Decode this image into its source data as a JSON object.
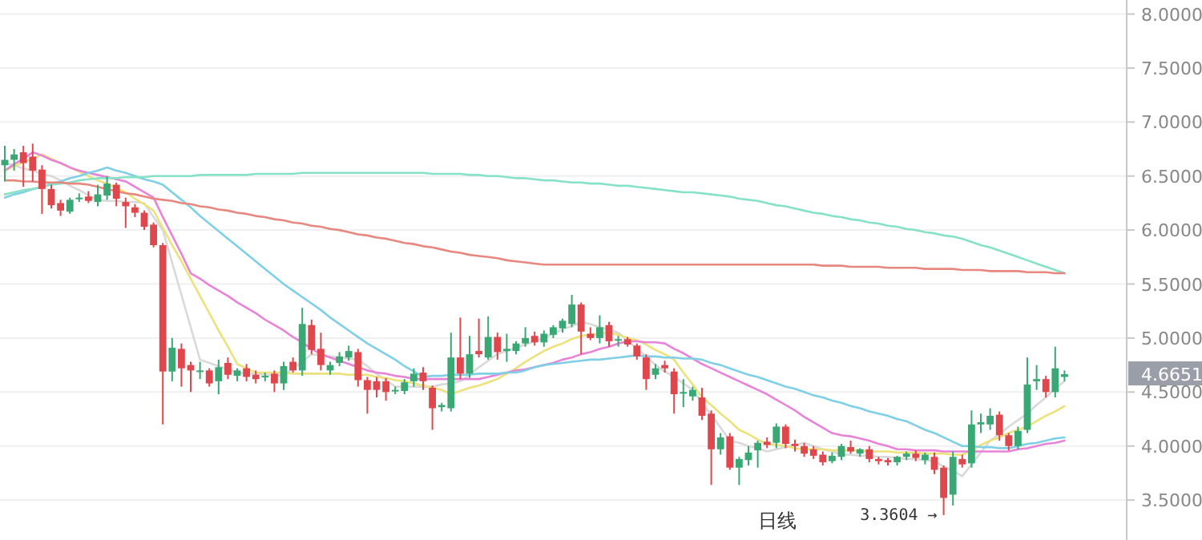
{
  "chart_data": {
    "type": "candlestick",
    "categories": [
      null,
      null,
      null,
      null,
      null,
      null,
      null,
      null,
      null,
      null,
      null,
      null,
      null,
      null,
      null,
      null,
      null,
      null,
      null,
      null,
      null,
      null,
      null,
      null,
      null,
      null,
      null,
      null,
      null,
      null,
      null,
      null,
      null,
      null,
      null,
      null,
      null,
      null,
      null,
      null,
      null,
      null,
      null,
      null,
      null,
      null,
      null,
      null,
      null,
      null,
      null,
      null,
      null,
      null,
      null,
      null,
      null,
      null,
      null,
      null,
      null,
      null,
      null,
      null,
      null,
      null,
      null,
      null,
      null,
      null,
      null,
      null,
      null,
      null,
      null,
      null,
      null,
      null,
      null,
      null,
      null,
      null,
      null,
      null,
      null,
      null,
      null,
      null,
      null,
      null,
      null,
      null,
      null,
      null,
      null,
      null,
      null,
      null,
      null,
      null,
      null,
      null,
      null,
      null,
      null,
      null,
      null,
      null,
      null,
      null,
      null,
      null,
      null,
      null,
      null
    ],
    "ohlc": [
      [
        6.6,
        6.78,
        6.45,
        6.65
      ],
      [
        6.65,
        6.75,
        6.55,
        6.7
      ],
      [
        6.72,
        6.78,
        6.4,
        6.62
      ],
      [
        6.68,
        6.8,
        6.45,
        6.55
      ],
      [
        6.56,
        6.6,
        6.15,
        6.38
      ],
      [
        6.38,
        6.42,
        6.2,
        6.23
      ],
      [
        6.25,
        6.28,
        6.13,
        6.18
      ],
      [
        6.17,
        6.3,
        6.15,
        6.28
      ],
      [
        6.29,
        6.34,
        6.26,
        6.3
      ],
      [
        6.31,
        6.36,
        6.25,
        6.27
      ],
      [
        6.26,
        6.42,
        6.22,
        6.33
      ],
      [
        6.32,
        6.5,
        6.28,
        6.43
      ],
      [
        6.42,
        6.44,
        6.22,
        6.29
      ],
      [
        6.26,
        6.3,
        6.02,
        6.22
      ],
      [
        6.21,
        6.24,
        6.12,
        6.16
      ],
      [
        6.16,
        6.18,
        6.0,
        6.03
      ],
      [
        6.05,
        6.07,
        5.84,
        5.86
      ],
      [
        5.86,
        5.88,
        4.2,
        4.69
      ],
      [
        4.69,
        5.0,
        4.6,
        4.91
      ],
      [
        4.9,
        4.95,
        4.55,
        4.72
      ],
      [
        4.75,
        4.78,
        4.5,
        4.7
      ],
      [
        4.7,
        4.78,
        4.62,
        4.7
      ],
      [
        4.7,
        4.72,
        4.55,
        4.58
      ],
      [
        4.6,
        4.8,
        4.48,
        4.73
      ],
      [
        4.77,
        4.82,
        4.62,
        4.66
      ],
      [
        4.65,
        4.72,
        4.6,
        4.7
      ],
      [
        4.72,
        4.76,
        4.6,
        4.64
      ],
      [
        4.66,
        4.7,
        4.58,
        4.62
      ],
      [
        4.64,
        4.68,
        4.6,
        4.65
      ],
      [
        4.67,
        4.7,
        4.5,
        4.58
      ],
      [
        4.58,
        4.78,
        4.52,
        4.74
      ],
      [
        4.78,
        4.82,
        4.68,
        4.7
      ],
      [
        4.7,
        5.28,
        4.65,
        5.13
      ],
      [
        5.12,
        5.17,
        4.85,
        4.89
      ],
      [
        4.9,
        5.05,
        4.7,
        4.75
      ],
      [
        4.7,
        4.78,
        4.66,
        4.75
      ],
      [
        4.77,
        4.87,
        4.74,
        4.83
      ],
      [
        4.82,
        4.93,
        4.79,
        4.88
      ],
      [
        4.87,
        4.9,
        4.55,
        4.61
      ],
      [
        4.61,
        4.64,
        4.3,
        4.52
      ],
      [
        4.6,
        4.64,
        4.45,
        4.52
      ],
      [
        4.6,
        4.63,
        4.42,
        4.5
      ],
      [
        4.52,
        4.55,
        4.48,
        4.52
      ],
      [
        4.51,
        4.62,
        4.48,
        4.59
      ],
      [
        4.6,
        4.72,
        4.55,
        4.67
      ],
      [
        4.68,
        4.73,
        4.52,
        4.6
      ],
      [
        4.54,
        4.56,
        4.15,
        4.35
      ],
      [
        4.36,
        4.4,
        4.32,
        4.38
      ],
      [
        4.35,
        5.05,
        4.32,
        4.82
      ],
      [
        4.82,
        5.19,
        4.62,
        4.67
      ],
      [
        4.67,
        5.02,
        4.63,
        4.85
      ],
      [
        4.88,
        5.18,
        4.82,
        4.85
      ],
      [
        4.82,
        5.2,
        4.8,
        5.01
      ],
      [
        5.01,
        5.05,
        4.8,
        4.87
      ],
      [
        4.88,
        5.04,
        4.78,
        4.9
      ],
      [
        4.88,
        4.97,
        4.85,
        4.95
      ],
      [
        4.95,
        5.1,
        4.92,
        5.0
      ],
      [
        5.02,
        5.06,
        4.93,
        4.96
      ],
      [
        4.96,
        5.07,
        4.92,
        5.04
      ],
      [
        5.03,
        5.12,
        5.0,
        5.1
      ],
      [
        5.09,
        5.18,
        5.05,
        5.16
      ],
      [
        5.13,
        5.4,
        5.1,
        5.31
      ],
      [
        5.31,
        5.33,
        4.85,
        5.06
      ],
      [
        5.04,
        5.1,
        4.98,
        5.0
      ],
      [
        5.0,
        5.21,
        4.95,
        5.1
      ],
      [
        5.12,
        5.15,
        4.92,
        4.97
      ],
      [
        4.98,
        5.02,
        4.92,
        4.99
      ],
      [
        4.99,
        5.01,
        4.92,
        4.94
      ],
      [
        4.93,
        4.95,
        4.8,
        4.83
      ],
      [
        4.82,
        4.85,
        4.52,
        4.62
      ],
      [
        4.66,
        4.76,
        4.62,
        4.72
      ],
      [
        4.75,
        4.79,
        4.68,
        4.72
      ],
      [
        4.69,
        4.72,
        4.3,
        4.48
      ],
      [
        4.5,
        4.62,
        4.36,
        4.5
      ],
      [
        4.46,
        4.55,
        4.42,
        4.52
      ],
      [
        4.45,
        4.54,
        4.24,
        4.28
      ],
      [
        4.3,
        4.33,
        3.64,
        3.97
      ],
      [
        3.97,
        4.12,
        3.92,
        4.08
      ],
      [
        4.09,
        4.12,
        3.78,
        3.8
      ],
      [
        3.8,
        3.9,
        3.64,
        3.88
      ],
      [
        3.87,
        4.0,
        3.82,
        3.94
      ],
      [
        3.96,
        4.05,
        3.8,
        4.03
      ],
      [
        4.04,
        4.08,
        3.98,
        4.01
      ],
      [
        4.03,
        4.21,
        3.98,
        4.18
      ],
      [
        4.18,
        4.2,
        3.98,
        4.02
      ],
      [
        4.02,
        4.06,
        3.95,
        4.0
      ],
      [
        4.0,
        4.03,
        3.9,
        3.93
      ],
      [
        3.97,
        4.0,
        3.88,
        3.91
      ],
      [
        3.92,
        3.95,
        3.82,
        3.85
      ],
      [
        3.86,
        3.94,
        3.84,
        3.91
      ],
      [
        3.9,
        4.02,
        3.87,
        4.0
      ],
      [
        3.99,
        4.05,
        3.93,
        3.95
      ],
      [
        3.93,
        3.98,
        3.9,
        3.97
      ],
      [
        3.97,
        4.0,
        3.85,
        3.88
      ],
      [
        3.88,
        3.9,
        3.83,
        3.86
      ],
      [
        3.87,
        3.89,
        3.82,
        3.85
      ],
      [
        3.85,
        3.91,
        3.82,
        3.9
      ],
      [
        3.9,
        3.95,
        3.87,
        3.93
      ],
      [
        3.93,
        3.96,
        3.86,
        3.89
      ],
      [
        3.87,
        3.94,
        3.83,
        3.92
      ],
      [
        3.9,
        3.94,
        3.74,
        3.78
      ],
      [
        3.8,
        3.82,
        3.3604,
        3.52
      ],
      [
        3.55,
        3.95,
        3.45,
        3.9
      ],
      [
        3.88,
        3.92,
        3.8,
        3.83
      ],
      [
        3.84,
        4.33,
        3.8,
        4.2
      ],
      [
        4.2,
        4.3,
        4.12,
        4.22
      ],
      [
        4.2,
        4.35,
        4.15,
        4.28
      ],
      [
        4.29,
        4.32,
        4.05,
        4.1
      ],
      [
        4.1,
        4.12,
        3.96,
        4.0
      ],
      [
        4.0,
        4.18,
        3.97,
        4.14
      ],
      [
        4.15,
        4.82,
        4.12,
        4.57
      ],
      [
        4.6,
        4.75,
        4.52,
        4.62
      ],
      [
        4.62,
        4.65,
        4.45,
        4.5
      ],
      [
        4.5,
        4.92,
        4.45,
        4.72
      ],
      [
        4.64,
        4.7,
        4.6,
        4.6651
      ]
    ],
    "series": [
      {
        "type": "line",
        "color": "#d9d9d9",
        "values": [
          6.62,
          6.6,
          6.57,
          6.55,
          6.52,
          6.5,
          6.46,
          6.41,
          6.37,
          6.32,
          6.28,
          6.27,
          6.27,
          6.26,
          6.26,
          6.25,
          6.12,
          6.0,
          5.7,
          5.4,
          5.1,
          4.8,
          4.77,
          4.74,
          4.71,
          4.68,
          4.67,
          4.67,
          4.66,
          4.66,
          4.65,
          4.72,
          4.78,
          4.85,
          4.84,
          4.83,
          4.82,
          4.81,
          4.8,
          4.74,
          4.67,
          4.61,
          4.55,
          4.55,
          4.55,
          4.55,
          4.55,
          4.57,
          4.58,
          4.6,
          4.66,
          4.73,
          4.79,
          4.85,
          4.88,
          4.91,
          4.94,
          4.97,
          5.0,
          5.04,
          5.08,
          5.11,
          5.15,
          5.13,
          5.1,
          5.08,
          5.05,
          4.98,
          4.9,
          4.83,
          4.75,
          4.69,
          4.64,
          4.58,
          4.52,
          4.4,
          4.29,
          4.17,
          4.05,
          4.03,
          4.0,
          3.98,
          3.95,
          3.97,
          3.99,
          4.01,
          4.03,
          4.0,
          3.97,
          3.95,
          3.92,
          3.92,
          3.91,
          3.91,
          3.9,
          3.9,
          3.89,
          3.88,
          3.88,
          3.87,
          3.86,
          3.81,
          3.77,
          3.72,
          3.83,
          3.94,
          4.05,
          4.11,
          4.18,
          4.24,
          4.3,
          4.38,
          4.45,
          4.53,
          4.6
        ]
      },
      {
        "type": "line",
        "color": "#ebe27c",
        "values": [
          6.55,
          6.59,
          6.63,
          6.66,
          6.7,
          6.66,
          6.62,
          6.58,
          6.54,
          6.5,
          6.46,
          6.43,
          6.39,
          6.35,
          6.29,
          6.24,
          6.18,
          6.02,
          5.86,
          5.71,
          5.55,
          5.39,
          5.23,
          5.07,
          4.92,
          4.76,
          4.72,
          4.68,
          4.68,
          4.68,
          4.68,
          4.67,
          4.67,
          4.67,
          4.67,
          4.67,
          4.67,
          4.66,
          4.66,
          4.66,
          4.64,
          4.63,
          4.61,
          4.6,
          4.58,
          4.56,
          4.54,
          4.52,
          4.48,
          4.51,
          4.54,
          4.56,
          4.59,
          4.62,
          4.67,
          4.72,
          4.78,
          4.83,
          4.88,
          4.92,
          4.95,
          4.99,
          5.02,
          5.03,
          5.04,
          5.05,
          5.03,
          5.0,
          4.98,
          4.94,
          4.89,
          4.85,
          4.8,
          4.68,
          4.57,
          4.45,
          4.38,
          4.3,
          4.23,
          4.15,
          4.11,
          4.06,
          4.02,
          4.01,
          4.0,
          3.98,
          3.97,
          3.97,
          3.97,
          3.96,
          3.96,
          3.96,
          3.96,
          3.95,
          3.95,
          3.95,
          3.94,
          3.94,
          3.94,
          3.93,
          3.93,
          3.93,
          3.92,
          3.92,
          3.96,
          4.01,
          4.05,
          4.08,
          4.12,
          4.15,
          4.18,
          4.23,
          4.28,
          4.32,
          4.37
        ]
      },
      {
        "type": "line",
        "color": "#e883d8",
        "values": [
          6.55,
          6.61,
          6.66,
          6.72,
          6.69,
          6.65,
          6.62,
          6.58,
          6.55,
          6.53,
          6.51,
          6.49,
          6.47,
          6.45,
          6.4,
          6.35,
          6.3,
          6.12,
          5.95,
          5.78,
          5.6,
          5.55,
          5.49,
          5.44,
          5.39,
          5.33,
          5.28,
          5.23,
          5.17,
          5.12,
          5.07,
          5.01,
          4.96,
          4.9,
          4.85,
          4.82,
          4.79,
          4.76,
          4.73,
          4.7,
          4.68,
          4.67,
          4.65,
          4.64,
          4.62,
          4.62,
          4.62,
          4.62,
          4.62,
          4.62,
          4.62,
          4.62,
          4.64,
          4.66,
          4.68,
          4.7,
          4.71,
          4.73,
          4.75,
          4.77,
          4.8,
          4.82,
          4.85,
          4.87,
          4.9,
          4.92,
          4.95,
          4.97,
          4.97,
          4.96,
          4.96,
          4.95,
          4.9,
          4.86,
          4.81,
          4.76,
          4.72,
          4.68,
          4.64,
          4.6,
          4.56,
          4.52,
          4.48,
          4.43,
          4.38,
          4.33,
          4.27,
          4.22,
          4.17,
          4.12,
          4.1,
          4.09,
          4.07,
          4.05,
          4.02,
          4.0,
          3.97,
          3.97,
          3.96,
          3.96,
          3.96,
          3.95,
          3.95,
          3.95,
          3.95,
          3.95,
          3.95,
          3.95,
          3.95,
          3.97,
          3.98,
          4.0,
          4.02,
          4.03,
          4.05
        ]
      },
      {
        "type": "line",
        "color": "#7fcfe6",
        "values": [
          6.3,
          6.33,
          6.35,
          6.38,
          6.4,
          6.43,
          6.45,
          6.48,
          6.5,
          6.53,
          6.55,
          6.58,
          6.55,
          6.53,
          6.5,
          6.47,
          6.45,
          6.42,
          6.35,
          6.28,
          6.21,
          6.13,
          6.06,
          5.99,
          5.92,
          5.85,
          5.78,
          5.71,
          5.64,
          5.57,
          5.5,
          5.44,
          5.38,
          5.32,
          5.26,
          5.19,
          5.13,
          5.07,
          5.01,
          4.95,
          4.9,
          4.85,
          4.8,
          4.74,
          4.69,
          4.64,
          4.65,
          4.65,
          4.66,
          4.66,
          4.66,
          4.67,
          4.67,
          4.67,
          4.68,
          4.68,
          4.7,
          4.73,
          4.75,
          4.76,
          4.77,
          4.78,
          4.79,
          4.8,
          4.8,
          4.81,
          4.82,
          4.83,
          4.84,
          4.83,
          4.83,
          4.82,
          4.82,
          4.81,
          4.81,
          4.8,
          4.77,
          4.75,
          4.72,
          4.69,
          4.66,
          4.64,
          4.61,
          4.58,
          4.55,
          4.53,
          4.5,
          4.47,
          4.45,
          4.42,
          4.4,
          4.37,
          4.35,
          4.32,
          4.3,
          4.28,
          4.25,
          4.23,
          4.19,
          4.15,
          4.12,
          4.08,
          4.04,
          4.0,
          4.0,
          3.99,
          3.99,
          3.98,
          3.98,
          4.0,
          4.02,
          4.03,
          4.05,
          4.07,
          4.08
        ]
      },
      {
        "type": "line",
        "color": "#86e2c6",
        "values": [
          6.33,
          6.35,
          6.37,
          6.38,
          6.4,
          6.42,
          6.43,
          6.44,
          6.46,
          6.47,
          6.48,
          6.48,
          6.48,
          6.49,
          6.49,
          6.49,
          6.5,
          6.5,
          6.5,
          6.5,
          6.5,
          6.51,
          6.51,
          6.51,
          6.51,
          6.51,
          6.51,
          6.52,
          6.52,
          6.52,
          6.52,
          6.52,
          6.53,
          6.53,
          6.53,
          6.53,
          6.53,
          6.53,
          6.53,
          6.53,
          6.53,
          6.53,
          6.53,
          6.53,
          6.53,
          6.53,
          6.52,
          6.52,
          6.52,
          6.52,
          6.51,
          6.51,
          6.5,
          6.5,
          6.49,
          6.48,
          6.48,
          6.47,
          6.46,
          6.46,
          6.45,
          6.44,
          6.44,
          6.43,
          6.43,
          6.42,
          6.41,
          6.41,
          6.4,
          6.39,
          6.38,
          6.37,
          6.36,
          6.35,
          6.35,
          6.34,
          6.33,
          6.32,
          6.31,
          6.29,
          6.28,
          6.27,
          6.25,
          6.23,
          6.22,
          6.2,
          6.18,
          6.16,
          6.15,
          6.13,
          6.12,
          6.1,
          6.09,
          6.07,
          6.06,
          6.04,
          6.03,
          6.01,
          6.0,
          5.98,
          5.97,
          5.95,
          5.94,
          5.92,
          5.89,
          5.86,
          5.84,
          5.81,
          5.78,
          5.75,
          5.72,
          5.69,
          5.66,
          5.63,
          5.6
        ]
      },
      {
        "type": "line",
        "color": "#e8877f",
        "values": [
          6.46,
          6.46,
          6.45,
          6.45,
          6.44,
          6.44,
          6.44,
          6.43,
          6.43,
          6.42,
          6.4,
          6.38,
          6.36,
          6.34,
          6.33,
          6.31,
          6.29,
          6.28,
          6.27,
          6.25,
          6.24,
          6.22,
          6.21,
          6.19,
          6.18,
          6.16,
          6.15,
          6.13,
          6.12,
          6.1,
          6.09,
          6.07,
          6.06,
          6.04,
          6.03,
          6.01,
          6.0,
          5.98,
          5.96,
          5.95,
          5.93,
          5.92,
          5.9,
          5.88,
          5.87,
          5.85,
          5.84,
          5.82,
          5.8,
          5.79,
          5.77,
          5.76,
          5.75,
          5.74,
          5.72,
          5.71,
          5.7,
          5.69,
          5.68,
          5.68,
          5.68,
          5.68,
          5.68,
          5.68,
          5.68,
          5.68,
          5.68,
          5.68,
          5.68,
          5.68,
          5.68,
          5.68,
          5.68,
          5.68,
          5.68,
          5.68,
          5.68,
          5.68,
          5.68,
          5.68,
          5.68,
          5.68,
          5.68,
          5.68,
          5.68,
          5.68,
          5.68,
          5.68,
          5.67,
          5.67,
          5.67,
          5.66,
          5.66,
          5.66,
          5.66,
          5.65,
          5.65,
          5.65,
          5.65,
          5.64,
          5.64,
          5.64,
          5.64,
          5.63,
          5.63,
          5.63,
          5.62,
          5.62,
          5.62,
          5.62,
          5.61,
          5.61,
          5.61,
          5.6,
          5.6
        ]
      }
    ],
    "ylim": [
      3.13,
      8.13
    ],
    "yticks": [
      {
        "value": 3.5,
        "label": "3.5000"
      },
      {
        "value": 4.0,
        "label": "4.0000"
      },
      {
        "value": 4.5,
        "label": "4.5000"
      },
      {
        "value": 5.0,
        "label": "5.0000"
      },
      {
        "value": 5.5,
        "label": "5.5000"
      },
      {
        "value": 6.0,
        "label": "6.0000"
      },
      {
        "value": 6.5,
        "label": "6.5000"
      },
      {
        "value": 7.0,
        "label": "7.0000"
      },
      {
        "value": 7.5,
        "label": "7.5000"
      },
      {
        "value": 8.0,
        "label": "8.0000"
      }
    ],
    "grid": "y",
    "annotations": [
      "日线",
      "3.3604 →",
      "4.6651"
    ]
  }
}
